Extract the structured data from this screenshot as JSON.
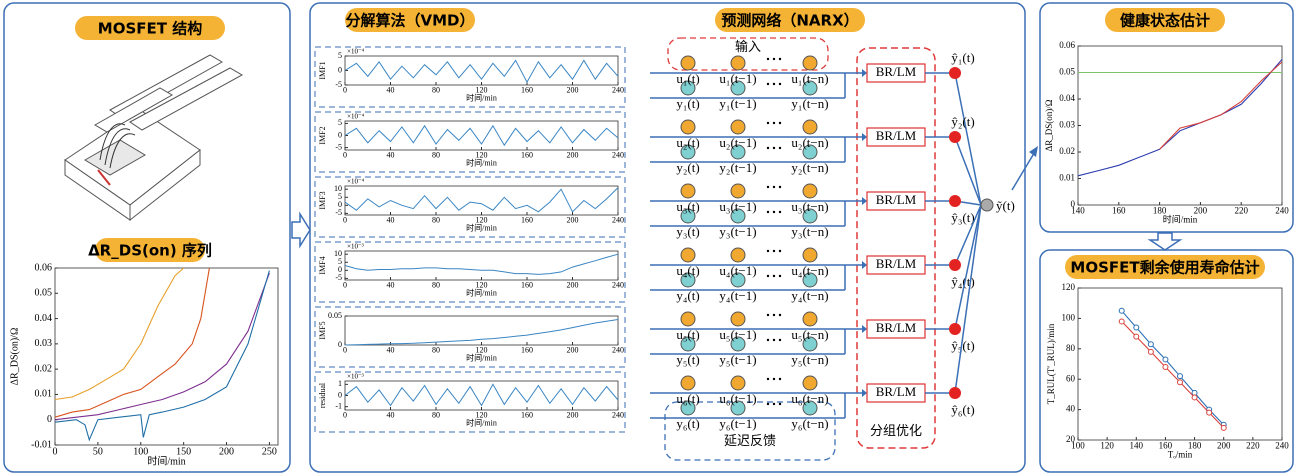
{
  "left_panel": {
    "title": "MOSFET 结构",
    "chart": {
      "type": "line",
      "title": "ΔR_DS(on) 序列",
      "x_label": "时间/min",
      "y_label": "ΔR_DS(on)/Ω",
      "xlim": [
        0,
        260
      ],
      "ylim": [
        -0.01,
        0.06
      ],
      "xticks": [
        0,
        50,
        100,
        150,
        200,
        250
      ],
      "yticks": [
        -0.01,
        0,
        0.01,
        0.02,
        0.03,
        0.04,
        0.05,
        0.06
      ],
      "series": [
        {
          "color": "#e8a02c",
          "x": [
            0,
            20,
            40,
            60,
            80,
            100,
            120,
            140,
            150
          ],
          "values": [
            0.008,
            0.009,
            0.012,
            0.016,
            0.02,
            0.03,
            0.045,
            0.057,
            0.06
          ]
        },
        {
          "color": "#d9541e",
          "x": [
            0,
            20,
            40,
            60,
            80,
            100,
            120,
            140,
            160,
            170,
            180
          ],
          "values": [
            0.001,
            0.003,
            0.004,
            0.007,
            0.01,
            0.012,
            0.017,
            0.022,
            0.03,
            0.04,
            0.06
          ]
        },
        {
          "color": "#7e2f8e",
          "x": [
            0,
            25,
            50,
            75,
            100,
            125,
            150,
            175,
            200,
            225,
            250
          ],
          "values": [
            0,
            0.001,
            0.002,
            0.004,
            0.006,
            0.008,
            0.011,
            0.015,
            0.022,
            0.035,
            0.058
          ]
        },
        {
          "color": "#1f6fa8",
          "x": [
            0,
            25,
            35,
            40,
            50,
            75,
            100,
            103,
            110,
            125,
            150,
            175,
            200,
            225,
            250
          ],
          "values": [
            -0.001,
            0,
            -0.002,
            -0.008,
            0,
            0.001,
            0.002,
            -0.007,
            0.002,
            0.003,
            0.005,
            0.008,
            0.013,
            0.03,
            0.059
          ]
        }
      ]
    }
  },
  "vmd": {
    "title": "分解算法（VMD）",
    "panels": [
      {
        "type": "line",
        "label": "IMF1",
        "exponent": "×10⁻⁴",
        "x_label": "时间/min",
        "xlim": [
          0,
          240
        ],
        "ylim": [
          -5,
          5
        ],
        "xticks": [
          0,
          40,
          80,
          120,
          160,
          200,
          240
        ],
        "yticks": [
          -5,
          0,
          5
        ],
        "series": [
          {
            "color": "#3a86c4",
            "x": [
              0,
              10,
              20,
              30,
              40,
              50,
              60,
              70,
              80,
              90,
              100,
              110,
              120,
              130,
              140,
              150,
              160,
              170,
              180,
              190,
              200,
              210,
              220,
              230,
              240
            ],
            "values": [
              0,
              2.5,
              -2,
              3,
              -3,
              1.5,
              -2.5,
              2,
              -1.5,
              3,
              -2.5,
              2,
              -3,
              2.5,
              -2,
              3.5,
              -4,
              3,
              -2.5,
              2,
              -3,
              3.5,
              -3,
              2.5,
              -2
            ]
          }
        ]
      },
      {
        "type": "line",
        "label": "IMF2",
        "exponent": "×10⁻⁴",
        "x_label": "时间/min",
        "xlim": [
          0,
          240
        ],
        "ylim": [
          -6,
          6
        ],
        "xticks": [
          0,
          40,
          80,
          120,
          160,
          200,
          240
        ],
        "yticks": [
          -5,
          0,
          5
        ],
        "series": [
          {
            "color": "#3a86c4",
            "x": [
              0,
              10,
              20,
              30,
              40,
              50,
              60,
              70,
              80,
              90,
              100,
              110,
              120,
              130,
              140,
              150,
              160,
              170,
              180,
              190,
              200,
              210,
              220,
              230,
              240
            ],
            "values": [
              0,
              3,
              -3,
              2,
              -2.5,
              3.5,
              -3,
              4,
              -3.5,
              2.5,
              -2,
              3,
              -3.5,
              4,
              -4,
              3,
              -2.5,
              2,
              -3,
              3.5,
              -3,
              2.5,
              -2,
              3,
              -1
            ]
          }
        ]
      },
      {
        "type": "line",
        "label": "IMF3",
        "exponent": "×10⁻⁴",
        "x_label": "时间/min",
        "xlim": [
          0,
          240
        ],
        "ylim": [
          -6,
          12
        ],
        "xticks": [
          0,
          40,
          80,
          120,
          160,
          200,
          240
        ],
        "yticks": [
          -5,
          0,
          5,
          10
        ],
        "series": [
          {
            "color": "#3a86c4",
            "x": [
              0,
              10,
              20,
              30,
              40,
              50,
              60,
              70,
              80,
              90,
              100,
              110,
              120,
              130,
              140,
              150,
              160,
              170,
              180,
              190,
              200,
              210,
              220,
              230,
              240
            ],
            "values": [
              2,
              -3,
              4,
              -1,
              3,
              0,
              -2,
              6,
              -2,
              5,
              -3,
              2,
              1,
              -3,
              5,
              -2,
              0,
              -4,
              2,
              10,
              -4,
              3,
              -2,
              4,
              11
            ]
          }
        ]
      },
      {
        "type": "line",
        "label": "IMF4",
        "exponent": "×10⁻³",
        "x_label": "时间/min",
        "xlim": [
          0,
          240
        ],
        "ylim": [
          -6,
          12
        ],
        "xticks": [
          0,
          40,
          80,
          120,
          160,
          200,
          240
        ],
        "yticks": [
          -5,
          0,
          5,
          10
        ],
        "series": [
          {
            "color": "#3a86c4",
            "x": [
              0,
              10,
              20,
              30,
              40,
              50,
              60,
              70,
              80,
              90,
              100,
              110,
              120,
              130,
              140,
              150,
              160,
              170,
              180,
              190,
              200,
              210,
              220,
              230,
              240
            ],
            "values": [
              3,
              1,
              0,
              0.5,
              0.5,
              1,
              1,
              1.5,
              1.5,
              1,
              1,
              0.5,
              0,
              0,
              -1,
              -2,
              -2,
              -2.5,
              -2,
              -1,
              2,
              4,
              6,
              8,
              10
            ]
          }
        ]
      },
      {
        "type": "line",
        "label": "IMF5",
        "x_label": "时间/min",
        "xlim": [
          0,
          240
        ],
        "ylim": [
          0,
          0.05
        ],
        "xticks": [
          0,
          40,
          80,
          120,
          160,
          200,
          240
        ],
        "yticks": [
          0,
          0.05
        ],
        "series": [
          {
            "color": "#3a86c4",
            "x": [
              0,
              10,
              20,
              30,
              40,
              50,
              60,
              70,
              80,
              90,
              100,
              110,
              120,
              130,
              140,
              150,
              160,
              170,
              180,
              190,
              200,
              210,
              220,
              230,
              240
            ],
            "values": [
              0,
              0.0005,
              0.001,
              0.0015,
              0.002,
              0.0025,
              0.003,
              0.004,
              0.005,
              0.006,
              0.007,
              0.008,
              0.01,
              0.011,
              0.013,
              0.015,
              0.017,
              0.02,
              0.023,
              0.026,
              0.03,
              0.034,
              0.038,
              0.041,
              0.044
            ]
          }
        ]
      },
      {
        "type": "line",
        "label": "residual",
        "exponent": "×10⁻³",
        "x_label": "时间/min",
        "xlim": [
          0,
          240
        ],
        "ylim": [
          -1.3,
          1.3
        ],
        "xticks": [
          0,
          40,
          80,
          120,
          160,
          200,
          240
        ],
        "yticks": [
          -1,
          0,
          1
        ],
        "series": [
          {
            "color": "#3a86c4",
            "x": [
              0,
              10,
              20,
              30,
              40,
              50,
              60,
              70,
              80,
              90,
              100,
              110,
              120,
              130,
              140,
              150,
              160,
              170,
              180,
              190,
              200,
              210,
              220,
              230,
              240
            ],
            "values": [
              0,
              0.8,
              -0.6,
              0.5,
              -0.9,
              0.7,
              -0.5,
              0.9,
              -0.8,
              0.6,
              -0.7,
              0.8,
              -0.9,
              1,
              -0.8,
              0.7,
              -0.6,
              0.9,
              -0.7,
              0.6,
              -0.8,
              0.7,
              -0.5,
              0.8,
              -0.4
            ]
          }
        ]
      }
    ]
  },
  "narx": {
    "title": "预测网络（NARX）",
    "input_label": "输入",
    "feedback_label": "延迟反馈",
    "optimizer_label": "分组优化",
    "output": "ỹ(t)",
    "rows": [
      {
        "inputs": [
          "u₁(t)",
          "u₁(t−1)",
          "u₁(t−n)"
        ],
        "outputs": [
          "y₁(t)",
          "y₁(t−1)",
          "y₁(t−n)"
        ],
        "block": "BR/LM",
        "prediction": "ŷ₁(t)"
      },
      {
        "inputs": [
          "u₂(t)",
          "u₂(t−1)",
          "u₂(t−n)"
        ],
        "outputs": [
          "y₂(t)",
          "y₂(t−1)",
          "y₂(t−n)"
        ],
        "block": "BR/LM",
        "prediction": "ŷ₂(t)"
      },
      {
        "inputs": [
          "u₃(t)",
          "u₃(t−1)",
          "u₃(t−n)"
        ],
        "outputs": [
          "y₃(t)",
          "y₃(t−1)",
          "y₃(t−n)"
        ],
        "block": "BR/LM",
        "prediction": "ŷ₃(t)"
      },
      {
        "inputs": [
          "u₄(t)",
          "u₄(t−1)",
          "u₄(t−n)"
        ],
        "outputs": [
          "y₄(t)",
          "y₄(t−1)",
          "y₄(t−n)"
        ],
        "block": "BR/LM",
        "prediction": "ŷ₄(t)"
      },
      {
        "inputs": [
          "u₅(t)",
          "u₅(t−1)",
          "u₅(t−n)"
        ],
        "outputs": [
          "y₅(t)",
          "y₅(t−1)",
          "y₅(t−n)"
        ],
        "block": "BR/LM",
        "prediction": "ŷ₅(t)"
      },
      {
        "inputs": [
          "u₆(t)",
          "u₆(t−1)",
          "u₆(t−n)"
        ],
        "outputs": [
          "y₆(t)",
          "y₆(t−1)",
          "y₆(t−n)"
        ],
        "block": "BR/LM",
        "prediction": "ŷ₆(t)"
      }
    ]
  },
  "health": {
    "type": "line",
    "title": "健康状态估计",
    "x_label": "时间/min",
    "y_label": "ΔR_DS(on)/Ω",
    "xlim": [
      140,
      240
    ],
    "ylim": [
      0,
      0.06
    ],
    "xticks": [
      140,
      160,
      180,
      200,
      220,
      240
    ],
    "yticks": [
      0,
      0.01,
      0.02,
      0.03,
      0.04,
      0.05,
      0.06
    ],
    "series": [
      {
        "color": "#7cc36a",
        "x": [
          140,
          240
        ],
        "values": [
          0.05,
          0.05
        ]
      },
      {
        "color": "#2a3cae",
        "x": [
          140,
          150,
          160,
          170,
          180,
          190,
          200,
          210,
          220,
          230,
          240
        ],
        "values": [
          0.011,
          0.013,
          0.015,
          0.018,
          0.021,
          0.028,
          0.031,
          0.034,
          0.038,
          0.046,
          0.055
        ]
      },
      {
        "color": "#d9403a",
        "x": [
          180,
          190,
          200,
          210,
          220,
          230,
          240
        ],
        "values": [
          0.021,
          0.029,
          0.031,
          0.034,
          0.039,
          0.047,
          0.054
        ]
      }
    ]
  },
  "rul": {
    "type": "line",
    "title": "MOSFET剩余使用寿命估计",
    "x_label": "Tₒ/min",
    "y_label": "T_RUL(T′_RUL)/min",
    "xlim": [
      100,
      240
    ],
    "ylim": [
      20,
      120
    ],
    "xticks": [
      100,
      120,
      140,
      160,
      180,
      200,
      220,
      240
    ],
    "yticks": [
      20,
      40,
      60,
      80,
      100,
      120
    ],
    "series": [
      {
        "color": "#2a6fb6",
        "marker": "circle",
        "x": [
          130,
          140,
          150,
          160,
          170,
          180,
          190,
          200
        ],
        "values": [
          105,
          94,
          83,
          73,
          62,
          51,
          40,
          30
        ]
      },
      {
        "color": "#d9403a",
        "marker": "circle",
        "x": [
          130,
          140,
          150,
          160,
          170,
          180,
          190,
          200
        ],
        "values": [
          98,
          88,
          78,
          68,
          58,
          48,
          38,
          28
        ]
      }
    ]
  }
}
